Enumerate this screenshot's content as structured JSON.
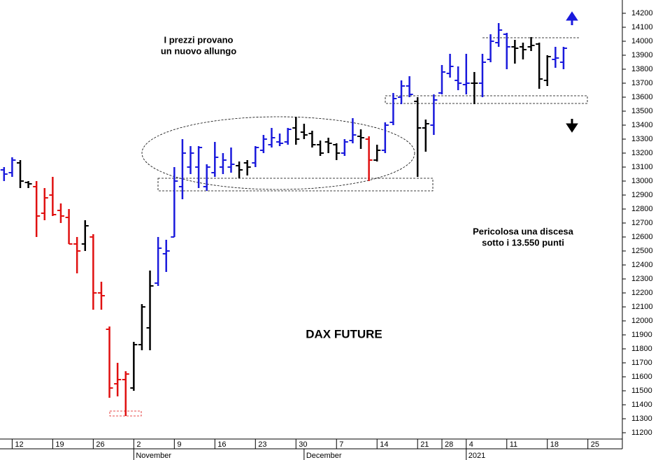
{
  "chart_data": {
    "type": "ohlc",
    "title": "DAX FUTURE",
    "annotations": [
      {
        "lines": [
          "I prezzi provano",
          "un nuovo allungo"
        ],
        "color": "#1a1adc"
      },
      {
        "lines": [
          "Pericolosa una discesa",
          "sotto i 13.550 punti"
        ],
        "color": "#000000"
      }
    ],
    "x": [
      -1,
      0,
      1,
      2,
      3,
      4,
      5,
      6,
      7,
      8,
      9,
      10,
      11,
      12,
      13,
      14,
      15,
      16,
      17,
      18,
      19,
      20,
      21,
      22,
      23,
      24,
      25,
      26,
      27,
      28,
      29,
      30,
      31,
      32,
      33,
      34,
      35,
      36,
      37,
      38,
      39,
      40,
      41,
      42,
      43,
      44,
      45,
      46,
      47,
      48,
      49,
      50,
      51,
      52,
      53,
      54,
      55,
      56,
      57,
      58,
      59,
      60,
      61,
      62,
      63,
      64,
      65,
      66,
      67,
      68
    ],
    "series": [
      {
        "open": [
          13080,
          13060,
          13130,
          12990,
          12960,
          12770,
          12900,
          12790,
          12740,
          12550,
          12550,
          12600,
          12200,
          11940,
          11550,
          11580,
          11520,
          11830,
          11950,
          12270,
          12480,
          12600,
          12960,
          13100,
          13100,
          12960,
          13060,
          13100,
          13100,
          13110,
          13130,
          13130,
          13220,
          13260,
          13280,
          13280,
          13380,
          13350,
          13340,
          13260,
          13280,
          13260,
          13200,
          13290,
          13320,
          13300,
          13150,
          13220,
          13420,
          13600,
          13680,
          13570,
          13380,
          13400,
          13630,
          13770,
          13720,
          13690,
          13700,
          13700,
          13870,
          13990,
          14050,
          13960,
          13960,
          13960,
          13980,
          13720,
          13870,
          13850
        ],
        "high": [
          13100,
          13170,
          13150,
          13000,
          13000,
          12950,
          13030,
          12840,
          12800,
          12600,
          12720,
          12620,
          12280,
          11960,
          11700,
          11640,
          11850,
          12120,
          12360,
          12600,
          12580,
          13100,
          13300,
          13250,
          13250,
          13120,
          13280,
          13200,
          13240,
          13140,
          13150,
          13250,
          13330,
          13380,
          13340,
          13380,
          13460,
          13410,
          13360,
          13290,
          13310,
          13270,
          13300,
          13450,
          13370,
          13320,
          13260,
          13420,
          13630,
          13720,
          13750,
          13600,
          13440,
          13620,
          13830,
          13910,
          13820,
          13910,
          13780,
          13910,
          14050,
          14130,
          14060,
          14010,
          13990,
          14030,
          13990,
          13900,
          13960,
          13960
        ],
        "low": [
          13000,
          13030,
          12950,
          12950,
          12600,
          12720,
          12750,
          12700,
          12550,
          12340,
          12500,
          12080,
          12080,
          11450,
          11460,
          11320,
          11500,
          11790,
          11790,
          12250,
          12350,
          12600,
          12870,
          13050,
          12950,
          12930,
          13030,
          13050,
          13060,
          13020,
          13040,
          13100,
          13200,
          13240,
          13250,
          13260,
          13260,
          13300,
          13240,
          13180,
          13200,
          13150,
          13180,
          13270,
          13230,
          13000,
          13140,
          13200,
          13400,
          13550,
          13600,
          13030,
          13210,
          13330,
          13620,
          13740,
          13650,
          13620,
          13550,
          13600,
          13850,
          13960,
          13800,
          13840,
          13870,
          13930,
          13660,
          13680,
          13810,
          13800
        ],
        "close": [
          13050,
          13150,
          13000,
          12980,
          12750,
          12880,
          12760,
          12750,
          12550,
          12500,
          12680,
          12200,
          12180,
          11520,
          11580,
          11620,
          11830,
          12100,
          12250,
          12520,
          12500,
          13000,
          13200,
          13200,
          13240,
          13100,
          13170,
          13150,
          13120,
          13080,
          13100,
          13240,
          13300,
          13310,
          13270,
          13370,
          13300,
          13330,
          13260,
          13200,
          13270,
          13200,
          13280,
          13330,
          13310,
          13150,
          13220,
          13400,
          13590,
          13680,
          13620,
          13380,
          13410,
          13580,
          13780,
          13820,
          13700,
          13700,
          13700,
          13850,
          14000,
          14080,
          13960,
          13950,
          13940,
          13970,
          13730,
          13890,
          13880,
          13950
        ],
        "colors": [
          "#1a1adc",
          "#1a1adc",
          "#000000",
          "#000000",
          "#e01010",
          "#e01010",
          "#e01010",
          "#e01010",
          "#e01010",
          "#e01010",
          "#000000",
          "#e01010",
          "#e01010",
          "#e01010",
          "#e01010",
          "#e01010",
          "#000000",
          "#000000",
          "#000000",
          "#1a1adc",
          "#1a1adc",
          "#1a1adc",
          "#1a1adc",
          "#1a1adc",
          "#1a1adc",
          "#1a1adc",
          "#1a1adc",
          "#1a1adc",
          "#1a1adc",
          "#000000",
          "#000000",
          "#1a1adc",
          "#1a1adc",
          "#1a1adc",
          "#1a1adc",
          "#1a1adc",
          "#000000",
          "#000000",
          "#000000",
          "#000000",
          "#000000",
          "#000000",
          "#1a1adc",
          "#1a1adc",
          "#000000",
          "#e01010",
          "#000000",
          "#1a1adc",
          "#1a1adc",
          "#1a1adc",
          "#1a1adc",
          "#000000",
          "#000000",
          "#1a1adc",
          "#1a1adc",
          "#1a1adc",
          "#1a1adc",
          "#1a1adc",
          "#000000",
          "#1a1adc",
          "#1a1adc",
          "#1a1adc",
          "#1a1adc",
          "#000000",
          "#000000",
          "#000000",
          "#000000",
          "#000000",
          "#1a1adc",
          "#1a1adc"
        ]
      }
    ],
    "xlim": [
      -1.5,
      75.25
    ],
    "xticks": [
      {
        "value": 0,
        "label": "12"
      },
      {
        "value": 5,
        "label": "19"
      },
      {
        "value": 10,
        "label": "26"
      },
      {
        "value": 15,
        "label": "2"
      },
      {
        "value": 20,
        "label": "9"
      },
      {
        "value": 25,
        "label": "16"
      },
      {
        "value": 30,
        "label": "23"
      },
      {
        "value": 35,
        "label": "30"
      },
      {
        "value": 40,
        "label": "7"
      },
      {
        "value": 45,
        "label": "14"
      },
      {
        "value": 50,
        "label": "21"
      },
      {
        "value": 53,
        "label": "28"
      },
      {
        "value": 56,
        "label": "4"
      },
      {
        "value": 61,
        "label": "11"
      },
      {
        "value": 66,
        "label": "18"
      },
      {
        "value": 71,
        "label": "25"
      }
    ],
    "month_labels": [
      {
        "value": 15,
        "label": "November"
      },
      {
        "value": 36,
        "label": "December"
      },
      {
        "value": 56,
        "label": "2021"
      }
    ],
    "ylim": [
      11155,
      14295
    ],
    "yticks": [
      11200,
      11300,
      11400,
      11500,
      11600,
      11700,
      11800,
      11900,
      12000,
      12100,
      12200,
      12300,
      12400,
      12500,
      12600,
      12700,
      12800,
      12900,
      13000,
      13100,
      13200,
      13300,
      13400,
      13500,
      13600,
      13700,
      13800,
      13900,
      14000,
      14100,
      14200
    ]
  }
}
